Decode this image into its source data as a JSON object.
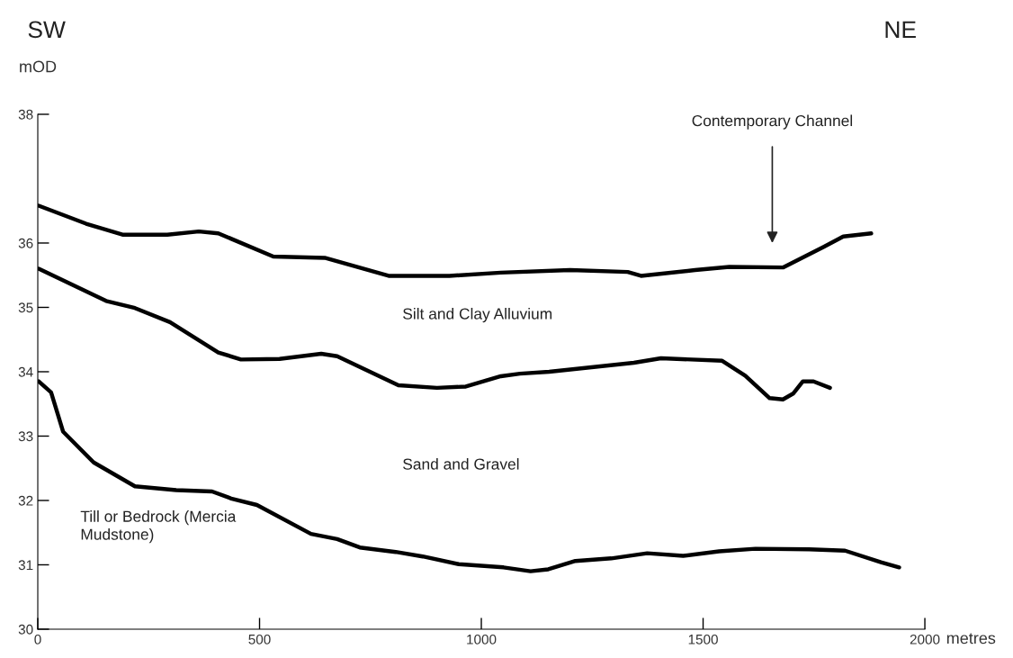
{
  "chart_data": {
    "type": "line",
    "xlabel": "metres",
    "ylabel": "mOD",
    "xlim": [
      0,
      2000
    ],
    "xticks": [
      0,
      500,
      1000,
      1500,
      2000
    ],
    "ylim": [
      30,
      38
    ],
    "yticks": [
      30,
      31,
      32,
      33,
      34,
      35,
      36,
      38
    ],
    "grid": false,
    "marker": "none",
    "line_style": "solid",
    "series": [
      {
        "color": "#000000",
        "x": [
          2,
          109,
          191,
          292,
          363,
          407,
          531,
          647,
          791,
          928,
          1044,
          1200,
          1330,
          1360,
          1482,
          1559,
          1680,
          1772,
          1816,
          1879
        ],
        "values": [
          36.58,
          36.3,
          36.13,
          36.13,
          36.18,
          36.15,
          35.79,
          35.77,
          35.49,
          35.49,
          35.54,
          35.58,
          35.55,
          35.49,
          35.58,
          35.63,
          35.62,
          35.94,
          36.1,
          36.15
        ]
      },
      {
        "color": "#000000",
        "x": [
          2,
          154,
          219,
          298,
          407,
          458,
          545,
          639,
          675,
          813,
          900,
          965,
          1044,
          1087,
          1153,
          1344,
          1405,
          1543,
          1595,
          1650,
          1680,
          1703,
          1725,
          1749,
          1786
        ],
        "values": [
          35.6,
          35.1,
          34.99,
          34.77,
          34.3,
          34.19,
          34.2,
          34.28,
          34.24,
          33.79,
          33.75,
          33.77,
          33.93,
          33.97,
          34.0,
          34.14,
          34.21,
          34.17,
          33.94,
          33.59,
          33.57,
          33.66,
          33.85,
          33.85,
          33.75
        ]
      },
      {
        "color": "#000000",
        "x": [
          2,
          30,
          57,
          126,
          219,
          312,
          393,
          436,
          494,
          616,
          675,
          726,
          807,
          868,
          949,
          1050,
          1111,
          1151,
          1212,
          1293,
          1374,
          1455,
          1536,
          1618,
          1739,
          1820,
          1901,
          1942
        ],
        "values": [
          33.85,
          33.68,
          33.07,
          32.59,
          32.22,
          32.16,
          32.14,
          32.03,
          31.93,
          31.48,
          31.4,
          31.27,
          31.2,
          31.13,
          31.01,
          30.96,
          30.9,
          30.93,
          31.06,
          31.1,
          31.18,
          31.14,
          31.21,
          31.25,
          31.24,
          31.22,
          31.04,
          30.96
        ]
      }
    ],
    "annotations": [
      "SW",
      "NE",
      "Contemporary Channel",
      "Silt and Clay Alluvium",
      "Sand and Gravel",
      "Till or Bedrock (Mercia\nMudstone)"
    ]
  }
}
